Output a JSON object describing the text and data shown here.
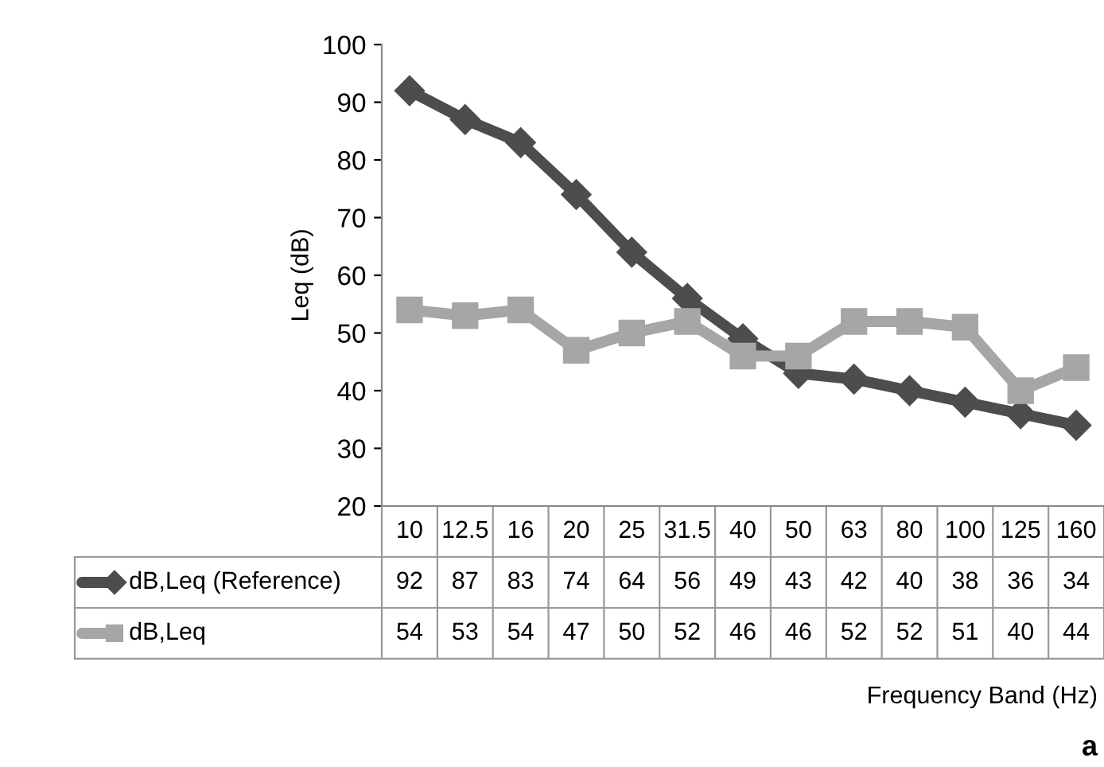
{
  "chart_data": {
    "type": "line",
    "ylabel": "Leq (dB)",
    "categories": [
      "10",
      "12.5",
      "16",
      "20",
      "25",
      "31.5",
      "40",
      "50",
      "63",
      "80",
      "100",
      "125",
      "160"
    ],
    "series": [
      {
        "name": "dB,Leq (Reference)",
        "color": "#4d4d4d",
        "marker": "diamond",
        "values": [
          92,
          87,
          83,
          74,
          64,
          56,
          49,
          43,
          42,
          40,
          38,
          36,
          34
        ]
      },
      {
        "name": "dB,Leq",
        "color": "#a6a6a6",
        "marker": "square",
        "values": [
          54,
          53,
          54,
          47,
          50,
          52,
          46,
          46,
          52,
          52,
          51,
          40,
          44
        ]
      }
    ],
    "ylim": [
      20,
      100
    ],
    "yticks": [
      20,
      30,
      40,
      50,
      60,
      70,
      80,
      90,
      100
    ],
    "grid": false,
    "legend": "bottom",
    "data_labels": true,
    "line_style": "solid",
    "annotations": [
      "Frequency Band (Hz)",
      "a"
    ]
  }
}
